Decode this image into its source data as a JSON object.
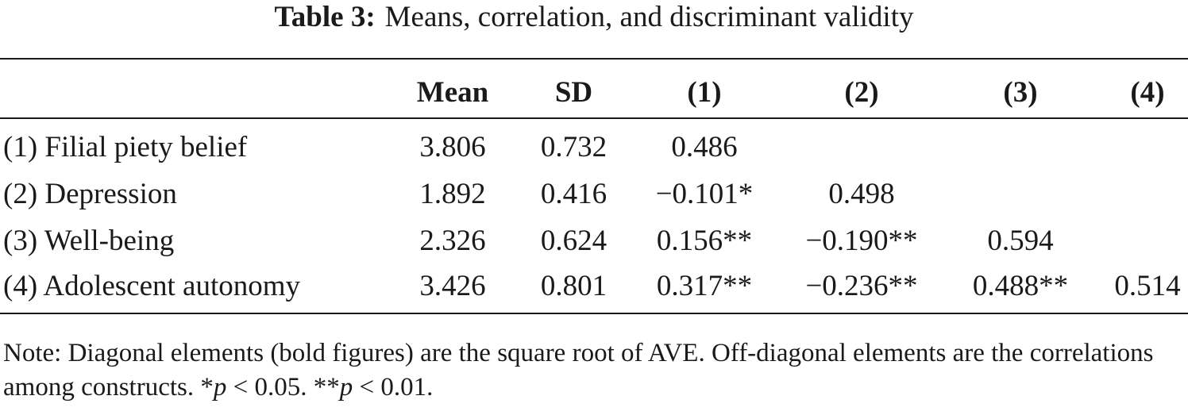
{
  "caption": {
    "label": "Table 3:",
    "title": "Means, correlation, and discriminant validity"
  },
  "table": {
    "headers": [
      "Mean",
      "SD",
      "(1)",
      "(2)",
      "(3)",
      "(4)"
    ],
    "rows": [
      {
        "label": "(1) Filial piety belief",
        "cells": [
          "3.806",
          "0.732",
          "0.486",
          "",
          "",
          ""
        ]
      },
      {
        "label": "(2) Depression",
        "cells": [
          "1.892",
          "0.416",
          "−0.101*",
          "0.498",
          "",
          ""
        ]
      },
      {
        "label": "(3) Well-being",
        "cells": [
          "2.326",
          "0.624",
          "0.156**",
          "−0.190**",
          "0.594",
          ""
        ]
      },
      {
        "label": "(4) Adolescent autonomy",
        "cells": [
          "3.426",
          "0.801",
          "0.317**",
          "−0.236**",
          "0.488**",
          "0.514"
        ]
      }
    ]
  },
  "note": {
    "text": "Note: Diagonal elements (bold figures) are the square root of AVE. Off-diagonal elements are the correlations among constructs. ",
    "sig1_mark": "*",
    "sig1_p": "p",
    "sig1_rest": " < 0.05. ",
    "sig2_mark": "**",
    "sig2_p": "p",
    "sig2_rest": " < 0.01."
  }
}
